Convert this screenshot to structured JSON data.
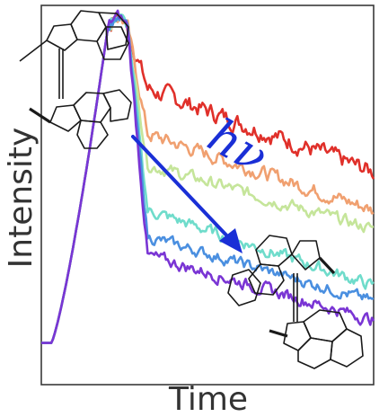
{
  "chart_data": {
    "type": "line",
    "xlabel": "Time",
    "ylabel": "Intensity",
    "annotation": "hν",
    "x_ticks_shown": false,
    "y_ticks_shown": false,
    "grid": false,
    "legend": "none",
    "xlim": [
      0,
      100
    ],
    "ylim": [
      0,
      1
    ],
    "arrow_color": "#1a2fd6",
    "series": [
      {
        "color": "#e0302a",
        "plateau": 0.78,
        "tail": 0.56,
        "noise": 0.018
      },
      {
        "color": "#f0a070",
        "plateau": 0.66,
        "tail": 0.46,
        "noise": 0.014
      },
      {
        "color": "#c5e59a",
        "plateau": 0.58,
        "tail": 0.41,
        "noise": 0.012
      },
      {
        "color": "#6fdccb",
        "plateau": 0.46,
        "tail": 0.26,
        "noise": 0.012
      },
      {
        "color": "#4a8fe0",
        "plateau": 0.39,
        "tail": 0.22,
        "noise": 0.011
      },
      {
        "color": "#7a35d4",
        "plateau": 0.34,
        "tail": 0.17,
        "noise": 0.012
      }
    ]
  }
}
